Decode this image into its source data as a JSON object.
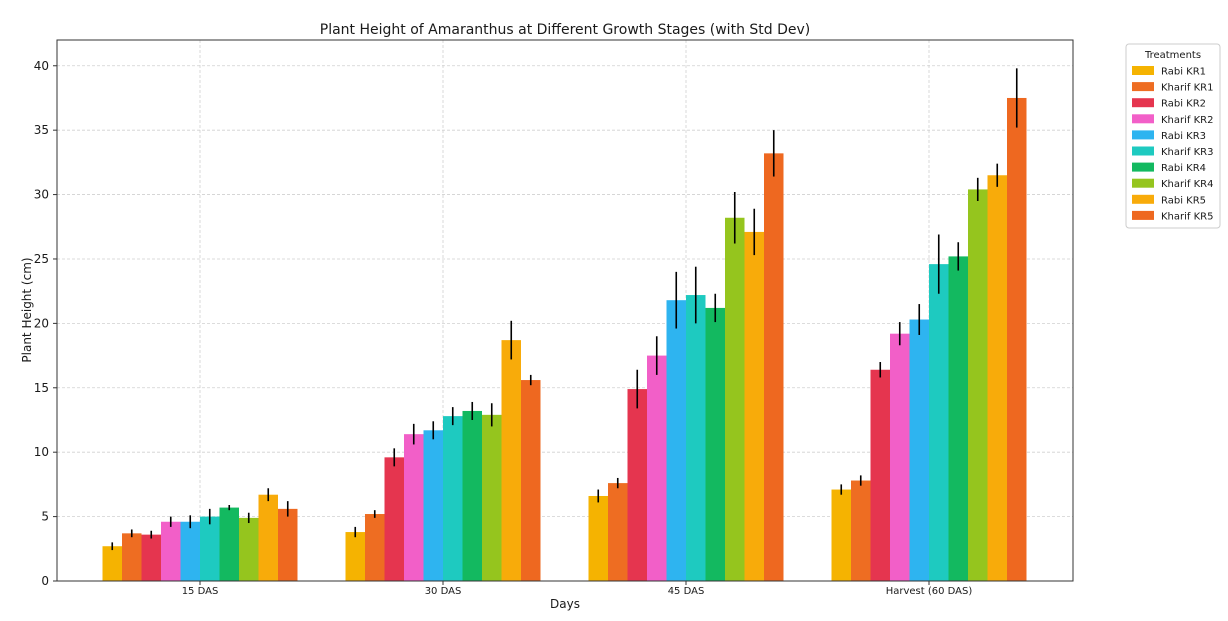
{
  "chart_data": {
    "type": "bar",
    "title": "Plant Height of Amaranthus at Different Growth Stages (with Std Dev)",
    "xlabel": "Days",
    "ylabel": "Plant Height (cm)",
    "ylim": [
      0,
      42
    ],
    "yticks": [
      0,
      5,
      10,
      15,
      20,
      25,
      30,
      35,
      40
    ],
    "grid": true,
    "legend_title": "Treatments",
    "legend_position": "outside-right-top",
    "categories": [
      "15 DAS",
      "30 DAS",
      "45 DAS",
      "Harvest (60 DAS)"
    ],
    "series": [
      {
        "name": "Rabi KR1",
        "color": "#F5B301",
        "values": [
          2.7,
          3.8,
          6.6,
          7.1
        ],
        "std": [
          0.3,
          0.4,
          0.5,
          0.4
        ]
      },
      {
        "name": "Kharif KR1",
        "color": "#EE6D22",
        "values": [
          3.7,
          5.2,
          7.6,
          7.8
        ],
        "std": [
          0.3,
          0.3,
          0.4,
          0.4
        ]
      },
      {
        "name": "Rabi KR2",
        "color": "#E5354F",
        "values": [
          3.6,
          9.6,
          14.9,
          16.4
        ],
        "std": [
          0.3,
          0.7,
          1.5,
          0.6
        ]
      },
      {
        "name": "Kharif KR2",
        "color": "#F25FC8",
        "values": [
          4.6,
          11.4,
          17.5,
          19.2
        ],
        "std": [
          0.4,
          0.8,
          1.5,
          0.9
        ]
      },
      {
        "name": "Rabi KR3",
        "color": "#2EB4F0",
        "values": [
          4.6,
          11.7,
          21.8,
          20.3
        ],
        "std": [
          0.5,
          0.7,
          2.2,
          1.2
        ]
      },
      {
        "name": "Kharif KR3",
        "color": "#1ECAC0",
        "values": [
          5.0,
          12.8,
          22.2,
          24.6
        ],
        "std": [
          0.6,
          0.7,
          2.2,
          2.3
        ]
      },
      {
        "name": "Rabi KR4",
        "color": "#13B960",
        "values": [
          5.7,
          13.2,
          21.2,
          25.2
        ],
        "std": [
          0.2,
          0.7,
          1.1,
          1.1
        ]
      },
      {
        "name": "Kharif KR4",
        "color": "#95C51E",
        "values": [
          4.9,
          12.9,
          28.2,
          30.4
        ],
        "std": [
          0.4,
          0.9,
          2.0,
          0.9
        ]
      },
      {
        "name": "Rabi KR5",
        "color": "#F8AB0A",
        "values": [
          6.7,
          18.7,
          27.1,
          31.5
        ],
        "std": [
          0.5,
          1.5,
          1.8,
          0.9
        ]
      },
      {
        "name": "Kharif KR5",
        "color": "#EE6820",
        "values": [
          5.6,
          15.6,
          33.2,
          37.5
        ],
        "std": [
          0.6,
          0.4,
          1.8,
          2.3
        ]
      }
    ]
  }
}
